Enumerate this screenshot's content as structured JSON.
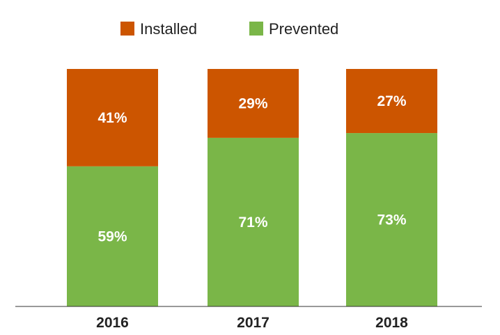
{
  "chart_data": {
    "type": "bar",
    "stacked": true,
    "percent_stacked": true,
    "categories": [
      "2016",
      "2017",
      "2018"
    ],
    "series": [
      {
        "name": "Prevented",
        "color": "#7ab648",
        "values": [
          59,
          71,
          73
        ],
        "labels": [
          "59%",
          "71%",
          "73%"
        ]
      },
      {
        "name": "Installed",
        "color": "#cc5500",
        "values": [
          41,
          29,
          27
        ],
        "labels": [
          "41%",
          "29%",
          "27%"
        ]
      }
    ],
    "legend_order": [
      "Installed",
      "Prevented"
    ],
    "legend_position": "top-center",
    "ylim": [
      0,
      100
    ],
    "grid": false,
    "title": "",
    "xlabel": "",
    "ylabel": ""
  }
}
